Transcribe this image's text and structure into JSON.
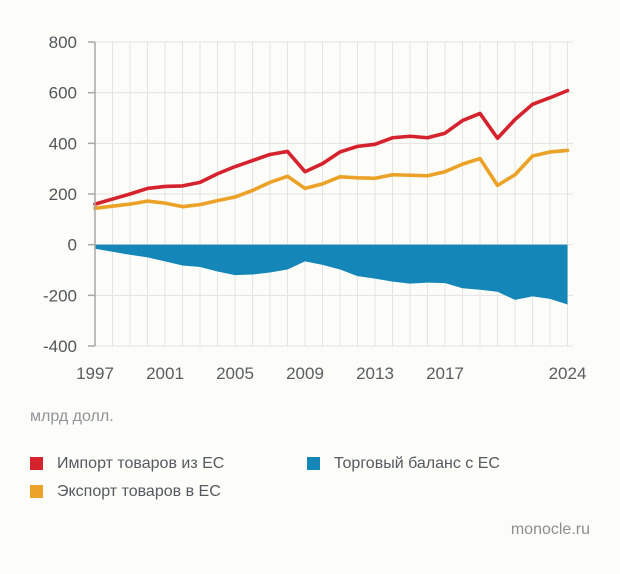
{
  "chart_data": {
    "type": "line",
    "title": "",
    "unit_label": "млрд долл.",
    "x": [
      1997,
      1998,
      1999,
      2000,
      2001,
      2002,
      2003,
      2004,
      2005,
      2006,
      2007,
      2008,
      2009,
      2010,
      2011,
      2012,
      2013,
      2014,
      2015,
      2016,
      2017,
      2018,
      2019,
      2020,
      2021,
      2022,
      2023,
      2024
    ],
    "x_tick_labels": [
      "1997",
      "2001",
      "2005",
      "2009",
      "2013",
      "2017",
      "2024"
    ],
    "y_ticks": [
      800,
      600,
      400,
      200,
      0,
      -200,
      -400
    ],
    "ylim": [
      -400,
      800
    ],
    "grid": true,
    "legend_position": "bottom",
    "series": [
      {
        "name": "Импорт товаров из ЕС",
        "kind": "line",
        "color": "#d5222d",
        "values": [
          160,
          180,
          200,
          222,
          230,
          232,
          246,
          280,
          308,
          332,
          356,
          368,
          288,
          320,
          366,
          388,
          396,
          422,
          428,
          422,
          440,
          490,
          518,
          420,
          494,
          554,
          580,
          608
        ]
      },
      {
        "name": "Экспорт товаров в ЕС",
        "kind": "line",
        "color": "#eca227",
        "values": [
          144,
          152,
          160,
          172,
          164,
          150,
          158,
          174,
          188,
          214,
          246,
          270,
          222,
          240,
          268,
          264,
          262,
          276,
          274,
          272,
          288,
          318,
          340,
          234,
          276,
          350,
          366,
          372
        ]
      },
      {
        "name": "Торговый баланс с ЕС",
        "kind": "area",
        "color": "#1486b8",
        "values": [
          -16,
          -28,
          -40,
          -50,
          -66,
          -82,
          -88,
          -106,
          -120,
          -118,
          -110,
          -98,
          -66,
          -80,
          -98,
          -124,
          -134,
          -146,
          -154,
          -150,
          -152,
          -172,
          -178,
          -186,
          -218,
          -204,
          -214,
          -236
        ]
      }
    ],
    "style": {
      "grid_color": "#e3e3e0",
      "axis_color": "#a8a8a5",
      "background": "#fcfcf9"
    }
  },
  "footer": {
    "source": "monocle.ru"
  }
}
